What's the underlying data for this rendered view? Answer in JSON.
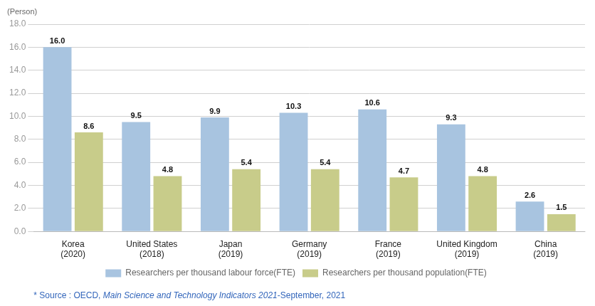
{
  "chart_data": {
    "type": "bar",
    "categories": [
      "Korea\n(2020)",
      "United States\n(2018)",
      "Japan\n(2019)",
      "Germany\n(2019)",
      "France\n(2019)",
      "United Kingdom\n(2019)",
      "China\n(2019)"
    ],
    "series": [
      {
        "name": "Researchers per thousand labour force(FTE)",
        "color": "#a8c4e0",
        "values": [
          16.0,
          9.5,
          9.9,
          10.3,
          10.6,
          9.3,
          2.6
        ],
        "value_labels": [
          "16.0",
          "9.5",
          "9.9",
          "10.3",
          "10.6",
          "9.3",
          "2.6"
        ]
      },
      {
        "name": "Researchers per thousand population(FTE)",
        "color": "#c8cc8a",
        "values": [
          8.6,
          4.8,
          5.4,
          5.4,
          4.7,
          4.8,
          1.5
        ],
        "value_labels": [
          "8.6",
          "4.8",
          "5.4",
          "5.4",
          "4.7",
          "4.8",
          "1.5"
        ]
      }
    ],
    "ylabel": "(Person)",
    "source": [
      "* Source : OECD, ",
      "Main Science and Technology Indicators 2021",
      "-September, 2021"
    ],
    "ylim": [
      0,
      18
    ],
    "yticks": [
      {
        "value": 0,
        "label": "0.0"
      },
      {
        "value": 2,
        "label": "2.0"
      },
      {
        "value": 4,
        "label": "4.0"
      },
      {
        "value": 6,
        "label": "6.0"
      },
      {
        "value": 8,
        "label": "8.0"
      },
      {
        "value": 10,
        "label": "10.0"
      },
      {
        "value": 12,
        "label": "12.0"
      },
      {
        "value": 14,
        "label": "14.0"
      },
      {
        "value": 16,
        "label": "16.0"
      },
      {
        "value": 18,
        "label": "18.0"
      }
    ],
    "grid": true,
    "legend": "bottom",
    "data_labels": true
  }
}
